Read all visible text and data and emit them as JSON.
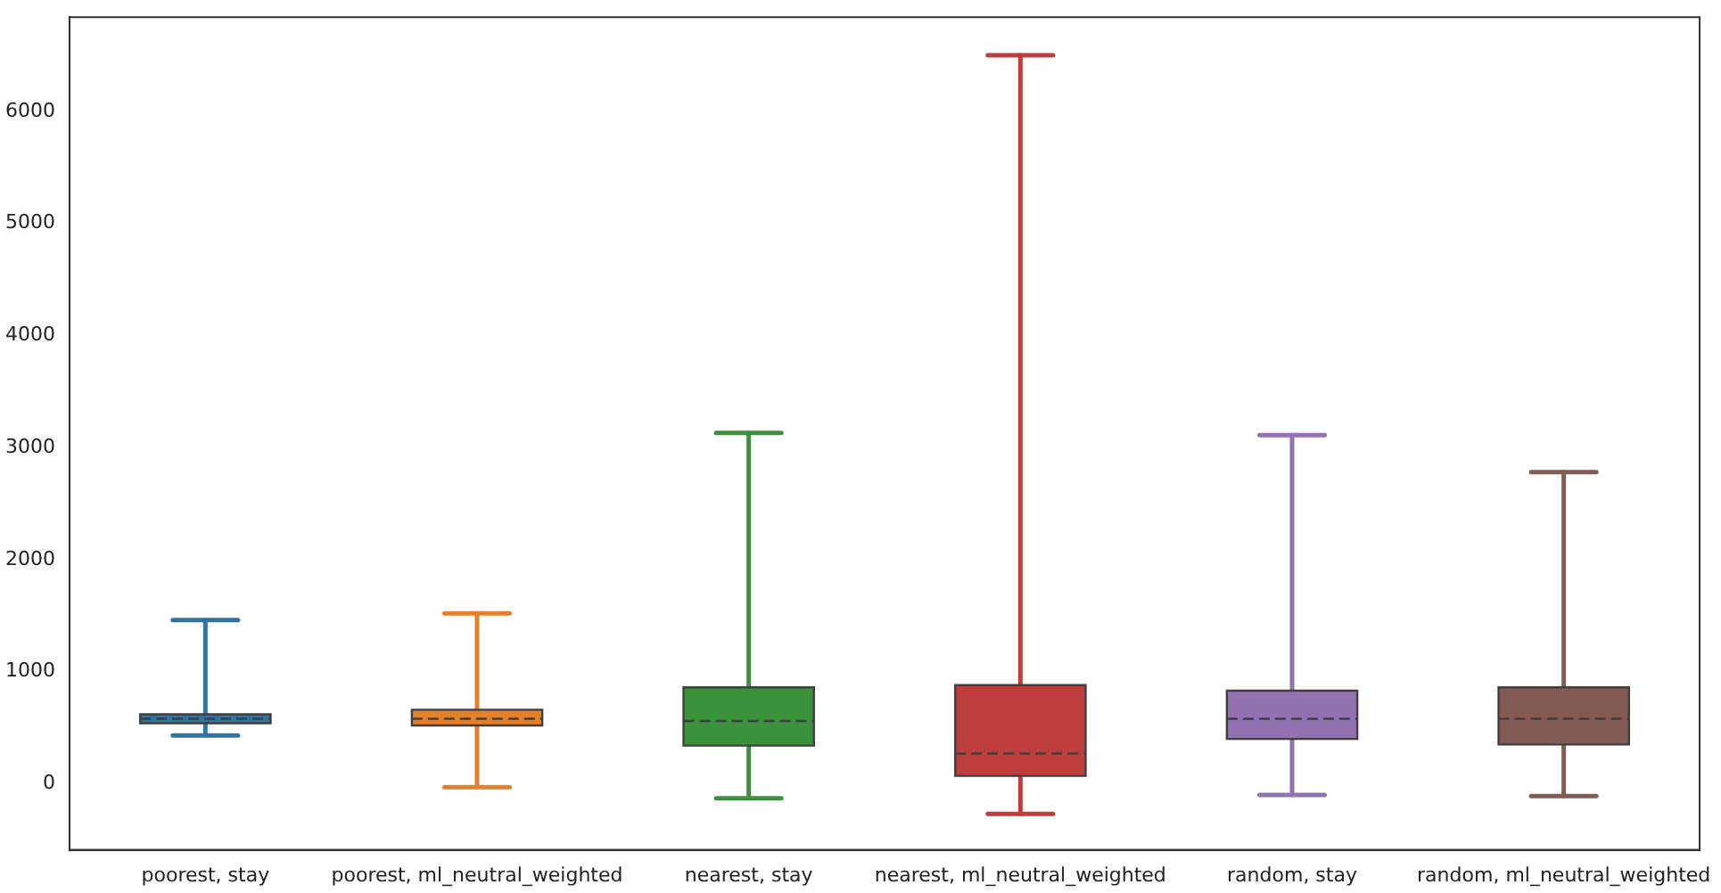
{
  "chart_data": {
    "type": "box",
    "categories": [
      "poorest, stay",
      "poorest, ml_neutral_weighted",
      "nearest, stay",
      "nearest, ml_neutral_weighted",
      "random, stay",
      "random, ml_neutral_weighted"
    ],
    "colors": [
      "#3274a1",
      "#e1812c",
      "#3a923a",
      "#c03d3e",
      "#9372b2",
      "#845b53"
    ],
    "boxes": [
      {
        "low": 430,
        "q1": 540,
        "median": 580,
        "q3": 620,
        "high": 1460
      },
      {
        "low": -30,
        "q1": 520,
        "median": 580,
        "q3": 660,
        "high": 1520
      },
      {
        "low": -130,
        "q1": 340,
        "median": 560,
        "q3": 860,
        "high": 3130
      },
      {
        "low": -270,
        "q1": 70,
        "median": 270,
        "q3": 880,
        "high": 6500
      },
      {
        "low": -100,
        "q1": 400,
        "median": 580,
        "q3": 830,
        "high": 3110
      },
      {
        "low": -110,
        "q1": 350,
        "median": 580,
        "q3": 860,
        "high": 2780
      }
    ],
    "ylim": [
      -590,
      6840
    ],
    "yticks": [
      0,
      1000,
      2000,
      3000,
      4000,
      5000,
      6000
    ],
    "grid": false,
    "legend": false
  }
}
